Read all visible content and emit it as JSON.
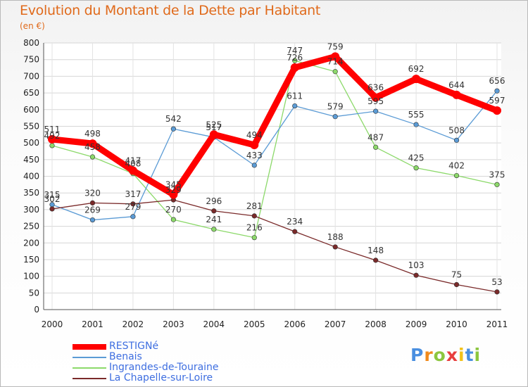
{
  "chart_data": {
    "type": "line",
    "title": "Evolution du Montant de la Dette par Habitant",
    "subtitle": "(en €)",
    "x": [
      "2000",
      "2001",
      "2002",
      "2003",
      "2004",
      "2005",
      "2006",
      "2007",
      "2008",
      "2009",
      "2010",
      "2011"
    ],
    "ylim": [
      0,
      800
    ],
    "yticks": [
      0,
      50,
      100,
      150,
      200,
      250,
      300,
      350,
      400,
      450,
      500,
      550,
      600,
      650,
      700,
      750,
      800
    ],
    "grid": true,
    "legend": "bottom-left",
    "series": [
      {
        "name": "RESTIGNé",
        "color": "#ff0000",
        "values": [
          511,
          498,
          417,
          345,
          525,
          494,
          726,
          759,
          636,
          692,
          644,
          597
        ]
      },
      {
        "name": "Benais",
        "color": "#5b9bd5",
        "values": [
          315,
          269,
          279,
          542,
          517,
          433,
          611,
          579,
          595,
          555,
          508,
          656
        ]
      },
      {
        "name": "Ingrandes-de-Touraine",
        "color": "#8cd96a",
        "values": [
          492,
          458,
          408,
          270,
          241,
          216,
          747,
          714,
          487,
          425,
          402,
          375
        ]
      },
      {
        "name": "La Chapelle-sur-Loire",
        "color": "#7a2a2a",
        "values": [
          302,
          320,
          317,
          329,
          296,
          281,
          234,
          188,
          148,
          103,
          75,
          53
        ]
      }
    ]
  },
  "logo": {
    "letters": [
      "P",
      "r",
      "o",
      "x",
      "i",
      "t",
      "i"
    ],
    "colors": [
      "#4a8fe0",
      "#f08a1c",
      "#8cc63f",
      "#e83e3e",
      "#f2c21a",
      "#4a8fe0",
      "#8cc63f"
    ]
  }
}
